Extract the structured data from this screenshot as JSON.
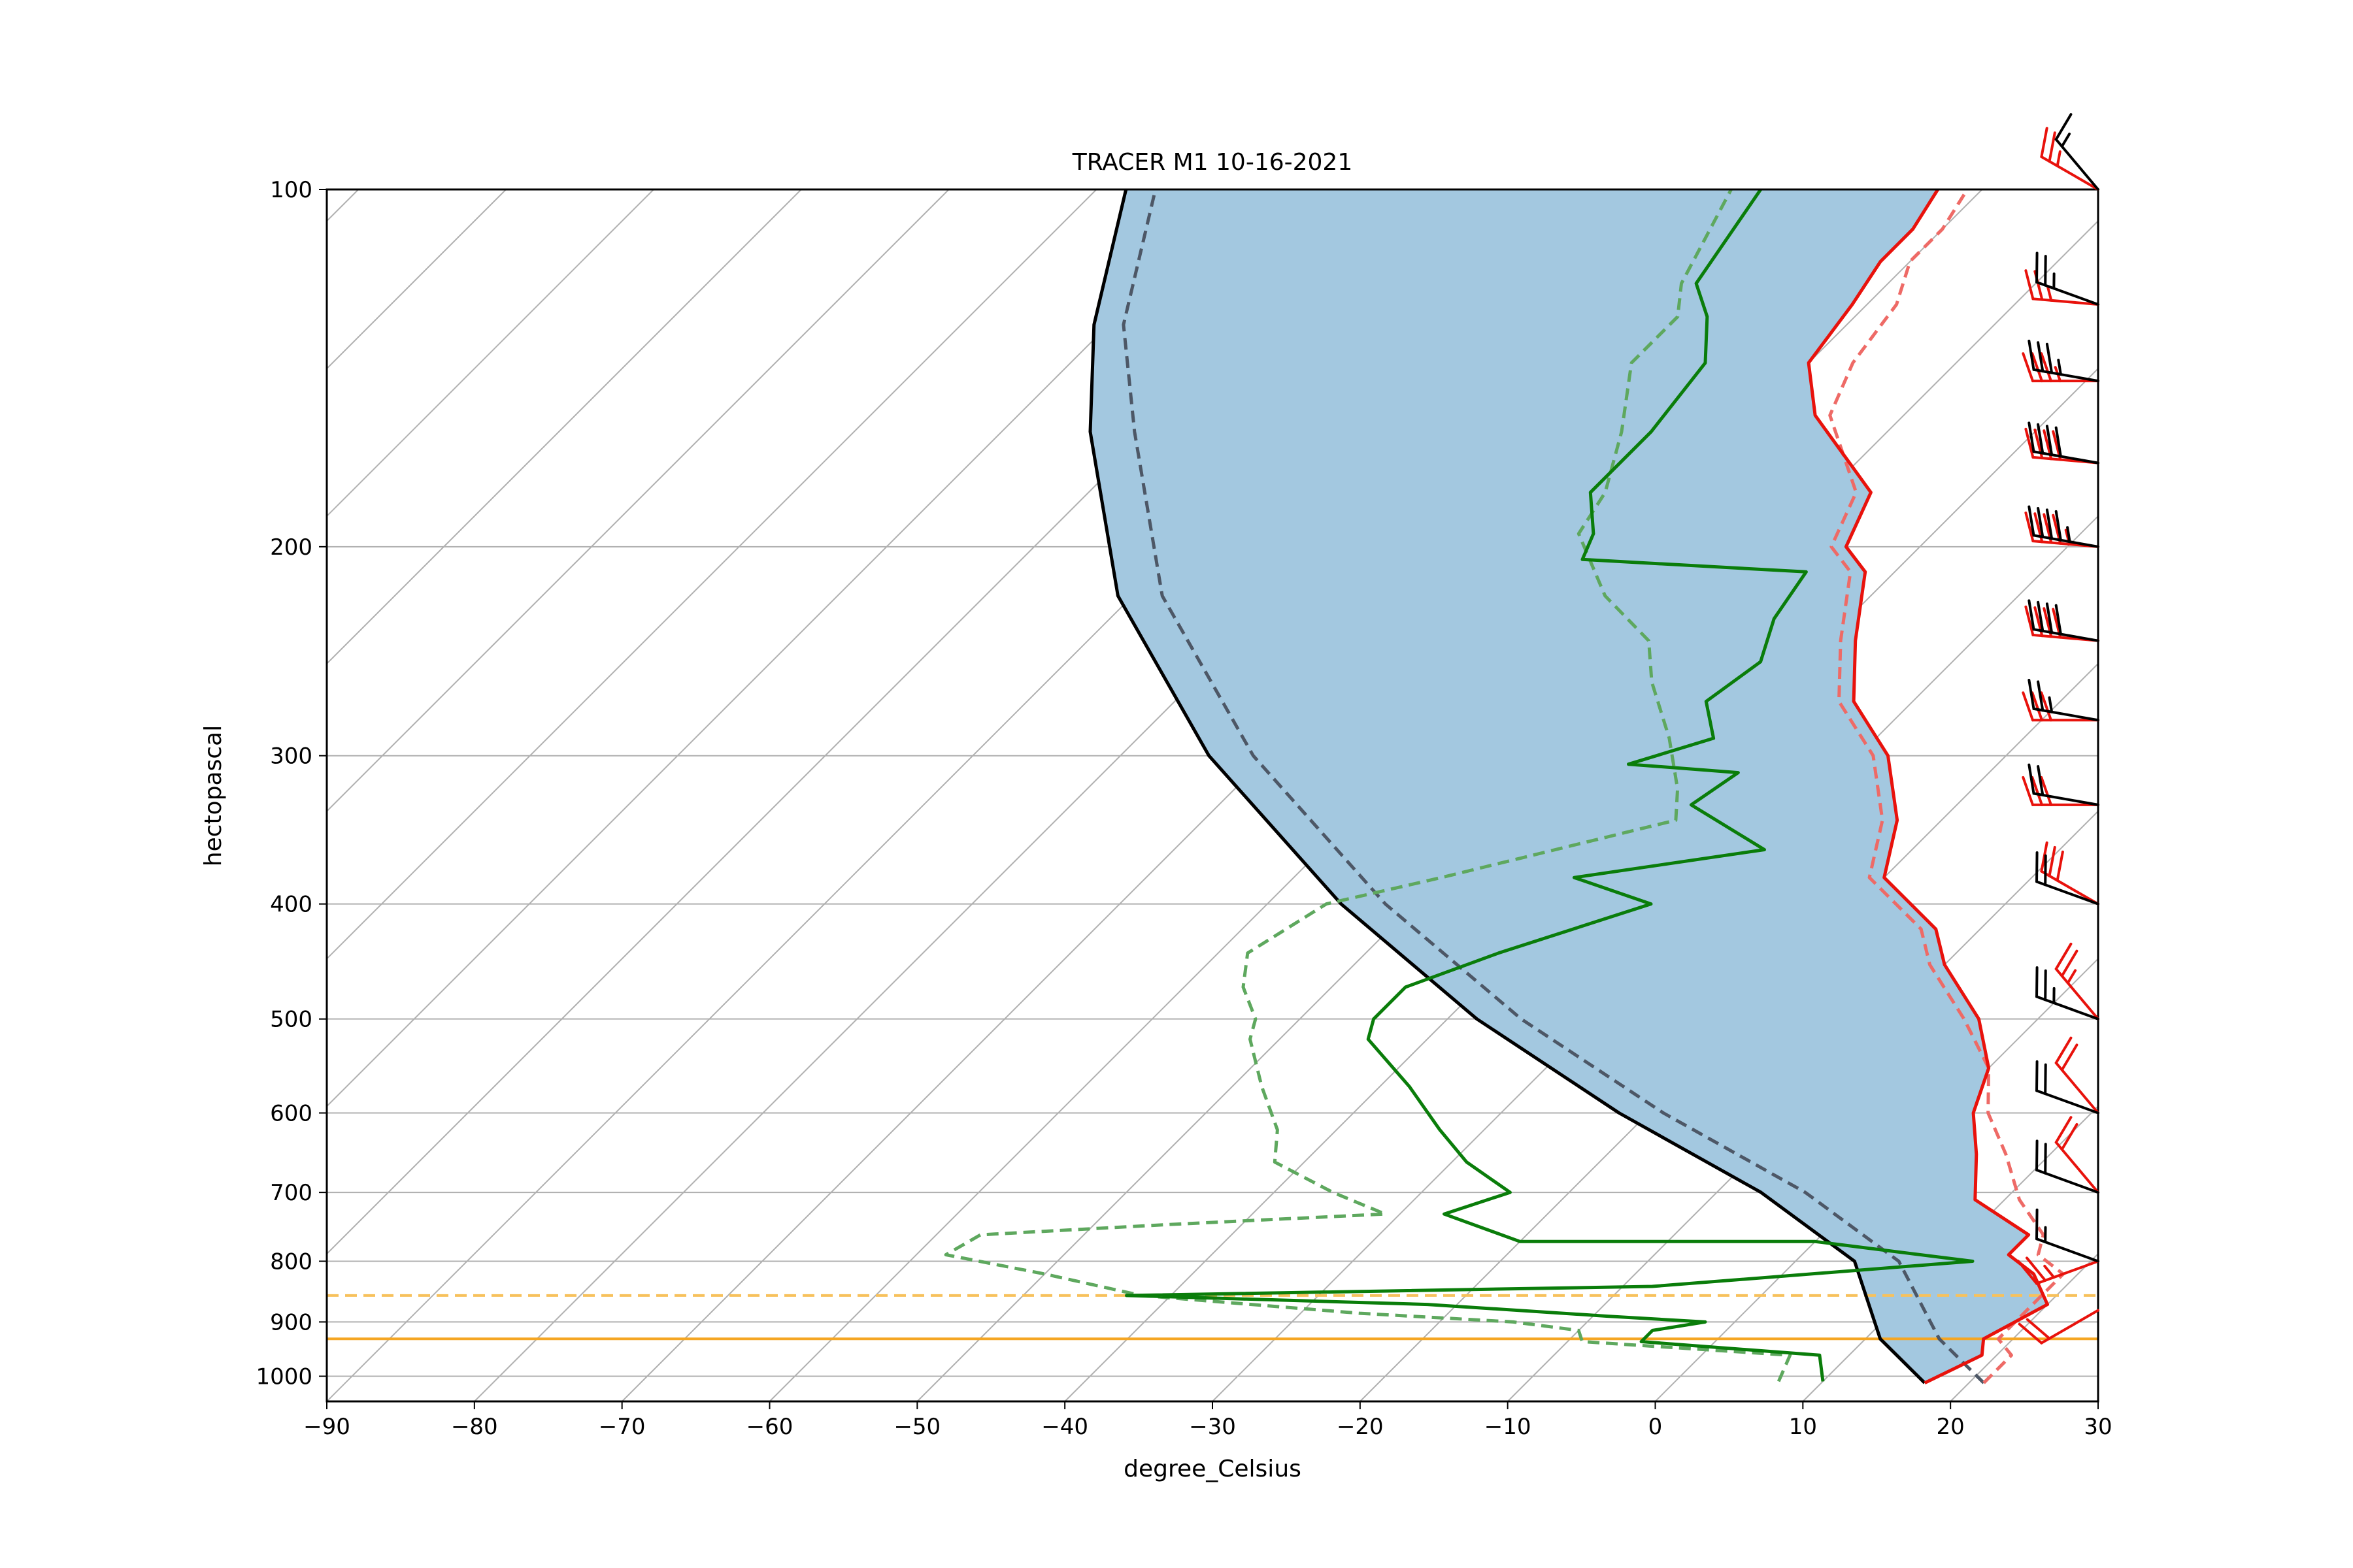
{
  "chart_data": {
    "type": "line",
    "subtype": "skew-T log-P diagram",
    "title": "TRACER M1 10-16-2021",
    "xlabel": "degree_Celsius",
    "ylabel": "hectopascal",
    "xlim": [
      -90,
      30
    ],
    "ylim": [
      1050,
      100
    ],
    "y_scale": "log",
    "grid": true,
    "x_ticks": [
      "−90",
      "−80",
      "−70",
      "−60",
      "−50",
      "−40",
      "−30",
      "−20",
      "−10",
      "0",
      "10",
      "20",
      "30"
    ],
    "y_ticks": [
      "100",
      "200",
      "300",
      "400",
      "500",
      "600",
      "700",
      "800",
      "900",
      "1000"
    ],
    "colors": {
      "temperature": "#e8120c",
      "temperature_dashed": "#ee6a66",
      "dewpoint": "#0a7d0a",
      "dewpoint_dashed": "#5ea85e",
      "parcel": "#000000",
      "parcel_dashed": "#4d5766",
      "cape_fill": "#a3c8e0",
      "lcl_line": "#f5a623",
      "lcl_dashed": "#f7c15c",
      "grid": "#b0b0b0",
      "barb_black": "#000000",
      "barb_red": "#e8120c"
    },
    "series": [
      {
        "style": "solid-red",
        "points": [
          [
            17,
            1013
          ],
          [
            19,
            960
          ],
          [
            18,
            930
          ],
          [
            20,
            870
          ],
          [
            17,
            820
          ],
          [
            14,
            790
          ],
          [
            14,
            760
          ],
          [
            8,
            710
          ],
          [
            5,
            650
          ],
          [
            2,
            600
          ],
          [
            0,
            550
          ],
          [
            -4,
            500
          ],
          [
            -10,
            450
          ],
          [
            -13,
            420
          ],
          [
            -20,
            380
          ],
          [
            -23,
            340
          ],
          [
            -28,
            300
          ],
          [
            -34,
            270
          ],
          [
            -38,
            240
          ],
          [
            -42,
            210
          ],
          [
            -45,
            200
          ],
          [
            -47,
            180
          ],
          [
            -56,
            155
          ],
          [
            -60,
            140
          ],
          [
            -61,
            125
          ],
          [
            -62,
            115
          ],
          [
            -62,
            108
          ],
          [
            -63,
            100
          ]
        ]
      },
      {
        "style": "dashed-red",
        "points": [
          [
            21,
            1013
          ],
          [
            21,
            960
          ],
          [
            19,
            930
          ],
          [
            19,
            870
          ],
          [
            19,
            820
          ],
          [
            16,
            790
          ],
          [
            15,
            760
          ],
          [
            11,
            710
          ],
          [
            7,
            650
          ],
          [
            3,
            600
          ],
          [
            0,
            550
          ],
          [
            -5,
            500
          ],
          [
            -11,
            450
          ],
          [
            -14,
            420
          ],
          [
            -21,
            380
          ],
          [
            -24,
            340
          ],
          [
            -29,
            300
          ],
          [
            -35,
            270
          ],
          [
            -39,
            240
          ],
          [
            -43,
            210
          ],
          [
            -46,
            200
          ],
          [
            -48,
            180
          ],
          [
            -55,
            155
          ],
          [
            -57,
            140
          ],
          [
            -58,
            125
          ],
          [
            -60,
            115
          ],
          [
            -60,
            108
          ],
          [
            -61,
            100
          ]
        ]
      },
      {
        "style": "solid-green",
        "points": [
          [
            10,
            1010
          ],
          [
            8,
            960
          ],
          [
            -5,
            935
          ],
          [
            -5,
            915
          ],
          [
            -2,
            900
          ],
          [
            -9,
            890
          ],
          [
            -22,
            870
          ],
          [
            -43,
            855
          ],
          [
            -8,
            840
          ],
          [
            12,
            800
          ],
          [
            0,
            770
          ],
          [
            -20,
            770
          ],
          [
            -27,
            730
          ],
          [
            -24,
            700
          ],
          [
            -29,
            660
          ],
          [
            -33,
            620
          ],
          [
            -38,
            570
          ],
          [
            -44,
            520
          ],
          [
            -45,
            500
          ],
          [
            -45,
            470
          ],
          [
            -41,
            440
          ],
          [
            -34,
            400
          ],
          [
            -41,
            380
          ],
          [
            -30,
            360
          ],
          [
            -38,
            330
          ],
          [
            -37,
            310
          ],
          [
            -45,
            305
          ],
          [
            -41,
            290
          ],
          [
            -44,
            270
          ],
          [
            -43,
            250
          ],
          [
            -45,
            230
          ],
          [
            -46,
            210
          ],
          [
            -62,
            205
          ],
          [
            -63,
            195
          ],
          [
            -66,
            180
          ],
          [
            -66,
            160
          ],
          [
            -67,
            140
          ],
          [
            -70,
            128
          ],
          [
            -73,
            120
          ],
          [
            -75,
            100
          ]
        ]
      },
      {
        "style": "dashed-green",
        "points": [
          [
            7,
            1010
          ],
          [
            6,
            960
          ],
          [
            -9,
            935
          ],
          [
            -10,
            915
          ],
          [
            -15,
            900
          ],
          [
            -26,
            885
          ],
          [
            -42,
            855
          ],
          [
            -50,
            820
          ],
          [
            -58,
            790
          ],
          [
            -57,
            760
          ],
          [
            -45,
            745
          ],
          [
            -31,
            730
          ],
          [
            -36,
            700
          ],
          [
            -42,
            660
          ],
          [
            -44,
            620
          ],
          [
            -48,
            570
          ],
          [
            -52,
            520
          ],
          [
            -53,
            500
          ],
          [
            -56,
            470
          ],
          [
            -58,
            440
          ],
          [
            -56,
            400
          ],
          [
            -50,
            380
          ],
          [
            -38,
            340
          ],
          [
            -40,
            320
          ],
          [
            -44,
            290
          ],
          [
            -49,
            260
          ],
          [
            -52,
            240
          ],
          [
            -58,
            220
          ],
          [
            -64,
            195
          ],
          [
            -65,
            180
          ],
          [
            -68,
            160
          ],
          [
            -72,
            140
          ],
          [
            -72,
            128
          ],
          [
            -74,
            120
          ],
          [
            -77,
            100
          ]
        ]
      },
      {
        "style": "solid-black",
        "points": [
          [
            17,
            1013
          ],
          [
            11,
            930
          ],
          [
            4,
            800
          ],
          [
            -7,
            700
          ],
          [
            -22,
            600
          ],
          [
            -38,
            500
          ],
          [
            -55,
            400
          ],
          [
            -74,
            300
          ],
          [
            -91,
            220
          ],
          [
            -104,
            160
          ],
          [
            -111,
            130
          ],
          [
            -118,
            100
          ]
        ]
      },
      {
        "style": "dashed-gray",
        "points": [
          [
            21,
            1013
          ],
          [
            15,
            930
          ],
          [
            7,
            800
          ],
          [
            -4,
            700
          ],
          [
            -19,
            600
          ],
          [
            -35,
            500
          ],
          [
            -52,
            400
          ],
          [
            -71,
            300
          ],
          [
            -88,
            220
          ],
          [
            -101,
            160
          ],
          [
            -109,
            130
          ],
          [
            -116,
            100
          ]
        ]
      }
    ],
    "horizontal_lines": [
      {
        "style": "solid-orange",
        "pressure": 930
      },
      {
        "style": "dashed-orange",
        "pressure": 855
      }
    ],
    "wind_barbs": [
      {
        "color": "red",
        "pressure": 880,
        "speed_kt": 20,
        "direction_deg": 240
      },
      {
        "color": "red",
        "pressure": 800,
        "speed_kt": 25,
        "direction_deg": 250
      },
      {
        "color": "black",
        "pressure": 800,
        "speed_kt": 15,
        "direction_deg": 290
      },
      {
        "color": "red",
        "pressure": 700,
        "speed_kt": 20,
        "direction_deg": 320
      },
      {
        "color": "black",
        "pressure": 700,
        "speed_kt": 20,
        "direction_deg": 290
      },
      {
        "color": "red",
        "pressure": 600,
        "speed_kt": 20,
        "direction_deg": 320
      },
      {
        "color": "black",
        "pressure": 600,
        "speed_kt": 20,
        "direction_deg": 290
      },
      {
        "color": "red",
        "pressure": 500,
        "speed_kt": 25,
        "direction_deg": 320
      },
      {
        "color": "black",
        "pressure": 500,
        "speed_kt": 25,
        "direction_deg": 290
      },
      {
        "color": "red",
        "pressure": 400,
        "speed_kt": 30,
        "direction_deg": 300
      },
      {
        "color": "black",
        "pressure": 400,
        "speed_kt": 20,
        "direction_deg": 290
      },
      {
        "color": "red",
        "pressure": 330,
        "speed_kt": 30,
        "direction_deg": 270
      },
      {
        "color": "black",
        "pressure": 330,
        "speed_kt": 20,
        "direction_deg": 280
      },
      {
        "color": "red",
        "pressure": 280,
        "speed_kt": 30,
        "direction_deg": 270
      },
      {
        "color": "black",
        "pressure": 280,
        "speed_kt": 25,
        "direction_deg": 280
      },
      {
        "color": "red",
        "pressure": 240,
        "speed_kt": 40,
        "direction_deg": 275
      },
      {
        "color": "black",
        "pressure": 240,
        "speed_kt": 40,
        "direction_deg": 280
      },
      {
        "color": "red",
        "pressure": 200,
        "speed_kt": 45,
        "direction_deg": 275
      },
      {
        "color": "black",
        "pressure": 200,
        "speed_kt": 45,
        "direction_deg": 280
      },
      {
        "color": "red",
        "pressure": 170,
        "speed_kt": 40,
        "direction_deg": 275
      },
      {
        "color": "black",
        "pressure": 170,
        "speed_kt": 40,
        "direction_deg": 280
      },
      {
        "color": "red",
        "pressure": 145,
        "speed_kt": 35,
        "direction_deg": 270
      },
      {
        "color": "black",
        "pressure": 145,
        "speed_kt": 35,
        "direction_deg": 280
      },
      {
        "color": "red",
        "pressure": 125,
        "speed_kt": 25,
        "direction_deg": 275
      },
      {
        "color": "black",
        "pressure": 125,
        "speed_kt": 25,
        "direction_deg": 290
      },
      {
        "color": "red",
        "pressure": 100,
        "speed_kt": 25,
        "direction_deg": 300
      },
      {
        "color": "black",
        "pressure": 100,
        "speed_kt": 15,
        "direction_deg": 320
      }
    ]
  }
}
